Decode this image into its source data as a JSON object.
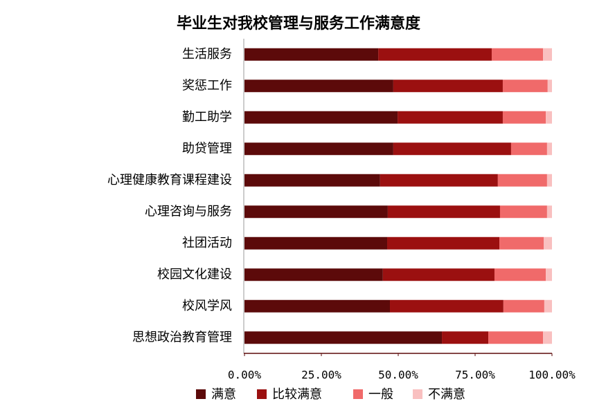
{
  "chart_data": {
    "type": "stacked-barh",
    "title": "毕业生对我校管理与服务工作满意度",
    "categories": [
      "生活服务",
      "奖惩工作",
      "勤工助学",
      "助贷管理",
      "心理健康教育课程建设",
      "心理咨询与服务",
      "社团活动",
      "校园文化建设",
      "校风学风",
      "思想政治教育管理"
    ],
    "series": [
      {
        "name": "满意",
        "color": "#5c0a0a",
        "values": [
          43.5,
          48.4,
          49.8,
          48.4,
          44.1,
          46.6,
          46.4,
          45.0,
          47.3,
          64.2
        ]
      },
      {
        "name": "比较满意",
        "color": "#9b1010",
        "values": [
          36.9,
          35.6,
          34.2,
          38.3,
          38.3,
          36.5,
          36.5,
          36.3,
          36.9,
          15.1
        ]
      },
      {
        "name": "一般",
        "color": "#f06a6a",
        "values": [
          16.7,
          14.6,
          14.0,
          11.7,
          16.0,
          15.3,
          14.4,
          16.7,
          13.3,
          17.8
        ]
      },
      {
        "name": "不满意",
        "color": "#f9c0c0",
        "values": [
          2.9,
          1.4,
          2.0,
          1.6,
          1.6,
          1.6,
          2.7,
          2.0,
          2.5,
          2.9
        ]
      }
    ],
    "xlim": [
      0,
      100
    ],
    "xticks": [
      {
        "value": 0,
        "label": "0.00%"
      },
      {
        "value": 25,
        "label": "25.00%"
      },
      {
        "value": 50,
        "label": "50.00%"
      },
      {
        "value": 75,
        "label": "75.00%"
      },
      {
        "value": 100,
        "label": "100.00%"
      }
    ],
    "legend": "bottom"
  }
}
